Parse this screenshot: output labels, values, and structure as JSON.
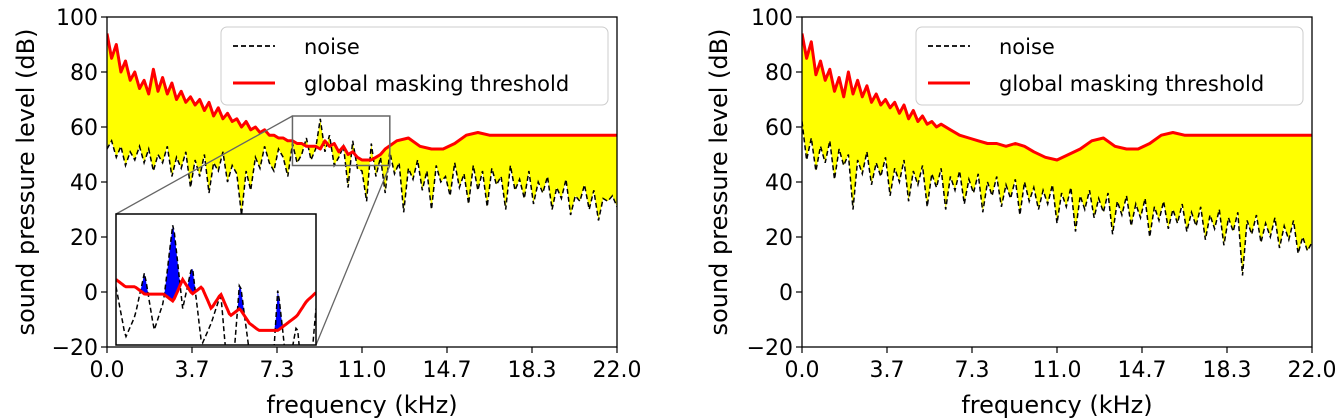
{
  "chart_data": [
    {
      "type": "area",
      "xlabel": "frequency (kHz)",
      "ylabel": "sound pressure level (dB)",
      "xlim": [
        0,
        22
      ],
      "ylim": [
        -20,
        100
      ],
      "x_ticks": [
        "0.0",
        "3.7",
        "7.3",
        "11.0",
        "14.7",
        "18.3",
        "22.0"
      ],
      "y_ticks": [
        "−20",
        "0",
        "20",
        "40",
        "60",
        "80",
        "100"
      ],
      "legend": {
        "placement": "top-right",
        "entries": [
          "noise",
          "global masking threshold"
        ]
      },
      "grid": false,
      "fill_color": "#ffff00",
      "exceed_color": "#0000ff",
      "series": [
        {
          "name": "noise",
          "style": "dashed",
          "color": "#000000",
          "x": [
            0.0,
            0.2,
            0.4,
            0.6,
            0.8,
            1.0,
            1.2,
            1.4,
            1.6,
            1.8,
            2.0,
            2.2,
            2.4,
            2.6,
            2.8,
            3.0,
            3.2,
            3.4,
            3.6,
            3.8,
            4.0,
            4.2,
            4.4,
            4.6,
            4.8,
            5.0,
            5.2,
            5.4,
            5.6,
            5.8,
            6.0,
            6.2,
            6.4,
            6.6,
            6.8,
            7.0,
            7.2,
            7.4,
            7.6,
            7.8,
            8.0,
            8.2,
            8.4,
            8.6,
            8.8,
            9.0,
            9.2,
            9.4,
            9.6,
            9.8,
            10.0,
            10.2,
            10.4,
            10.6,
            10.8,
            11.0,
            11.2,
            11.4,
            11.6,
            11.8,
            12.0,
            12.2,
            12.4,
            12.6,
            12.8,
            13.0,
            13.2,
            13.4,
            13.6,
            13.8,
            14.0,
            14.2,
            14.4,
            14.6,
            14.8,
            15.0,
            15.2,
            15.4,
            15.6,
            15.8,
            16.0,
            16.2,
            16.4,
            16.6,
            16.8,
            17.0,
            17.2,
            17.4,
            17.6,
            17.8,
            18.0,
            18.2,
            18.4,
            18.6,
            18.8,
            19.0,
            19.2,
            19.4,
            19.6,
            19.8,
            20.0,
            20.2,
            20.4,
            20.6,
            20.8,
            21.0,
            21.2,
            21.4,
            21.6,
            21.8,
            22.0
          ],
          "values": [
            52,
            55,
            49,
            53,
            46,
            51,
            48,
            53,
            47,
            52,
            44,
            50,
            47,
            53,
            42,
            49,
            45,
            51,
            38,
            48,
            42,
            50,
            36,
            47,
            44,
            51,
            40,
            46,
            43,
            28,
            44,
            37,
            49,
            45,
            53,
            47,
            44,
            52,
            49,
            42,
            54,
            47,
            50,
            56,
            48,
            52,
            63,
            51,
            57,
            46,
            49,
            53,
            38,
            55,
            45,
            44,
            33,
            54,
            42,
            49,
            36,
            51,
            43,
            47,
            29,
            45,
            41,
            48,
            37,
            44,
            30,
            46,
            40,
            42,
            35,
            47,
            38,
            43,
            32,
            46,
            37,
            44,
            31,
            45,
            39,
            42,
            30,
            46,
            37,
            41,
            34,
            44,
            32,
            40,
            36,
            42,
            30,
            38,
            34,
            41,
            28,
            35,
            33,
            39,
            30,
            37,
            26,
            34,
            33,
            35,
            31
          ]
        },
        {
          "name": "global masking threshold",
          "style": "solid",
          "color": "#ff0000",
          "x": [
            0.0,
            0.2,
            0.4,
            0.6,
            0.8,
            1.0,
            1.2,
            1.4,
            1.6,
            1.8,
            2.0,
            2.2,
            2.4,
            2.6,
            2.8,
            3.0,
            3.2,
            3.4,
            3.6,
            3.8,
            4.0,
            4.2,
            4.4,
            4.6,
            4.8,
            5.0,
            5.2,
            5.4,
            5.6,
            5.8,
            6.0,
            6.2,
            6.4,
            6.6,
            6.8,
            7.0,
            7.2,
            7.4,
            7.6,
            7.8,
            8.0,
            8.2,
            8.4,
            8.6,
            8.8,
            9.0,
            9.2,
            9.4,
            9.6,
            9.8,
            10.0,
            10.2,
            10.4,
            10.6,
            10.8,
            11.0,
            11.2,
            11.4,
            11.6,
            11.8,
            12.0,
            12.5,
            13.0,
            13.5,
            14.0,
            14.5,
            15.0,
            15.5,
            16.0,
            16.5,
            17.0,
            17.5,
            18.0,
            18.5,
            19.0,
            19.5,
            20.0,
            20.5,
            21.0,
            21.5,
            22.0
          ],
          "values": [
            94,
            85,
            90,
            80,
            84,
            77,
            80,
            74,
            77,
            72,
            81,
            73,
            78,
            72,
            76,
            70,
            73,
            69,
            71,
            68,
            70,
            66,
            69,
            64,
            67,
            63,
            65,
            62,
            63,
            60,
            62,
            59,
            60,
            58,
            59,
            57,
            57,
            56,
            56,
            55,
            55,
            54,
            54,
            53,
            53,
            53,
            52,
            55,
            53,
            54,
            51,
            53,
            50,
            51,
            49,
            48,
            48,
            48,
            49,
            50,
            52,
            55,
            56,
            53,
            52,
            52,
            54,
            57,
            58,
            57,
            57,
            57,
            57,
            57,
            57,
            57,
            57,
            57,
            57,
            57,
            57
          ]
        }
      ],
      "inset": {
        "source_xlim": [
          8.0,
          12.2
        ],
        "source_ylim": [
          46,
          64
        ],
        "source_box_color": "#666666"
      }
    },
    {
      "type": "area",
      "xlabel": "frequency (kHz)",
      "ylabel": "sound pressure level (dB)",
      "xlim": [
        0,
        22
      ],
      "ylim": [
        -20,
        100
      ],
      "x_ticks": [
        "0.0",
        "3.7",
        "7.3",
        "11.0",
        "14.7",
        "18.3",
        "22.0"
      ],
      "y_ticks": [
        "−20",
        "0",
        "20",
        "40",
        "60",
        "80",
        "100"
      ],
      "legend": {
        "placement": "top-right",
        "entries": [
          "noise",
          "global masking threshold"
        ]
      },
      "grid": false,
      "fill_color": "#ffff00",
      "series": [
        {
          "name": "noise",
          "style": "dashed",
          "color": "#000000",
          "x": [
            0.0,
            0.2,
            0.4,
            0.6,
            0.8,
            1.0,
            1.2,
            1.4,
            1.6,
            1.8,
            2.0,
            2.2,
            2.4,
            2.6,
            2.8,
            3.0,
            3.2,
            3.4,
            3.6,
            3.8,
            4.0,
            4.2,
            4.4,
            4.6,
            4.8,
            5.0,
            5.2,
            5.4,
            5.6,
            5.8,
            6.0,
            6.2,
            6.4,
            6.6,
            6.8,
            7.0,
            7.2,
            7.4,
            7.6,
            7.8,
            8.0,
            8.2,
            8.4,
            8.6,
            8.8,
            9.0,
            9.2,
            9.4,
            9.6,
            9.8,
            10.0,
            10.2,
            10.4,
            10.6,
            10.8,
            11.0,
            11.2,
            11.4,
            11.6,
            11.8,
            12.0,
            12.2,
            12.4,
            12.6,
            12.8,
            13.0,
            13.2,
            13.4,
            13.6,
            13.8,
            14.0,
            14.2,
            14.4,
            14.6,
            14.8,
            15.0,
            15.2,
            15.4,
            15.6,
            15.8,
            16.0,
            16.2,
            16.4,
            16.6,
            16.8,
            17.0,
            17.2,
            17.4,
            17.6,
            17.8,
            18.0,
            18.2,
            18.4,
            18.6,
            18.8,
            19.0,
            19.2,
            19.4,
            19.6,
            19.8,
            20.0,
            20.2,
            20.4,
            20.6,
            20.8,
            21.0,
            21.2,
            21.4,
            21.6,
            21.8,
            22.0
          ],
          "values": [
            62,
            48,
            56,
            44,
            53,
            47,
            55,
            41,
            52,
            46,
            50,
            30,
            48,
            43,
            51,
            39,
            47,
            42,
            49,
            35,
            45,
            40,
            48,
            33,
            44,
            39,
            46,
            31,
            43,
            38,
            45,
            30,
            42,
            37,
            44,
            32,
            41,
            36,
            43,
            29,
            40,
            35,
            42,
            31,
            39,
            34,
            41,
            28,
            40,
            33,
            38,
            30,
            37,
            32,
            39,
            25,
            36,
            31,
            38,
            22,
            35,
            30,
            37,
            27,
            34,
            29,
            36,
            21,
            33,
            28,
            35,
            24,
            32,
            27,
            34,
            20,
            31,
            26,
            33,
            23,
            30,
            25,
            32,
            22,
            29,
            24,
            31,
            19,
            28,
            23,
            30,
            17,
            27,
            22,
            29,
            6,
            26,
            21,
            28,
            18,
            25,
            20,
            27,
            16,
            24,
            19,
            26,
            14,
            20,
            15,
            18
          ]
        },
        {
          "name": "global masking threshold",
          "style": "solid",
          "color": "#ff0000",
          "x": [
            0.0,
            0.2,
            0.4,
            0.6,
            0.8,
            1.0,
            1.2,
            1.4,
            1.6,
            1.8,
            2.0,
            2.2,
            2.4,
            2.6,
            2.8,
            3.0,
            3.2,
            3.4,
            3.6,
            3.8,
            4.0,
            4.2,
            4.4,
            4.6,
            4.8,
            5.0,
            5.2,
            5.4,
            5.6,
            5.8,
            6.0,
            6.4,
            6.8,
            7.2,
            7.6,
            8.0,
            8.4,
            8.8,
            9.2,
            9.6,
            10.0,
            10.5,
            11.0,
            11.5,
            12.0,
            12.5,
            13.0,
            13.5,
            14.0,
            14.5,
            15.0,
            15.5,
            16.0,
            16.5,
            17.0,
            17.5,
            18.0,
            18.5,
            19.0,
            19.5,
            20.0,
            20.5,
            21.0,
            21.5,
            22.0
          ],
          "values": [
            94,
            85,
            91,
            79,
            84,
            77,
            81,
            73,
            78,
            71,
            80,
            72,
            77,
            71,
            75,
            69,
            72,
            68,
            70,
            67,
            69,
            65,
            68,
            63,
            66,
            62,
            64,
            61,
            62,
            60,
            61,
            59,
            57,
            56,
            55,
            54,
            54,
            53,
            54,
            53,
            51,
            49,
            48,
            50,
            52,
            55,
            56,
            53,
            52,
            52,
            54,
            57,
            58,
            57,
            57,
            57,
            57,
            57,
            57,
            57,
            57,
            57,
            57,
            57,
            57
          ]
        }
      ]
    }
  ]
}
